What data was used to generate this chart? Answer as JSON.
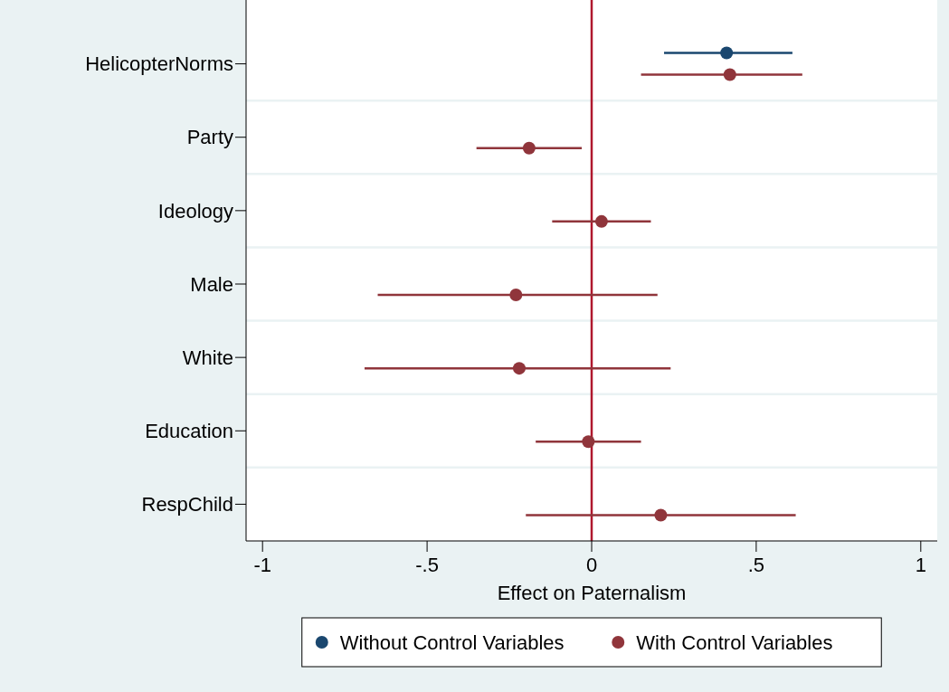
{
  "chart_data": {
    "type": "scatter",
    "orientation": "horizontal",
    "xlabel": "Effect on Paternalism",
    "categories": [
      "HelicopterNorms",
      "Party",
      "Ideology",
      "Male",
      "White",
      "Education",
      "RespChild"
    ],
    "series": [
      {
        "name": "Without Control Variables",
        "color": "#1a476f",
        "values": [
          0.41,
          null,
          null,
          null,
          null,
          null,
          null
        ],
        "errors": [
          [
            0.22,
            0.61
          ],
          null,
          null,
          null,
          null,
          null,
          null
        ]
      },
      {
        "name": "With Control Variables",
        "color": "#90353b",
        "values": [
          0.42,
          -0.19,
          0.03,
          -0.23,
          -0.22,
          -0.01,
          0.21
        ],
        "errors": [
          [
            0.15,
            0.64
          ],
          [
            -0.35,
            -0.03
          ],
          [
            -0.12,
            0.18
          ],
          [
            -0.65,
            0.2
          ],
          [
            -0.69,
            0.24
          ],
          [
            -0.17,
            0.15
          ],
          [
            -0.2,
            0.62
          ]
        ]
      }
    ],
    "xlim": [
      -1.05,
      1.05
    ],
    "xticks": [
      -1,
      {
        "value": -0.5,
        "label": "-.5"
      },
      0,
      {
        "value": 0.5,
        "label": ".5"
      },
      1
    ],
    "ref_lines": [
      {
        "axis": "x",
        "value": 0,
        "color": "#b0182e"
      }
    ],
    "grid": true,
    "legend": "bottom",
    "marker": "circle"
  }
}
